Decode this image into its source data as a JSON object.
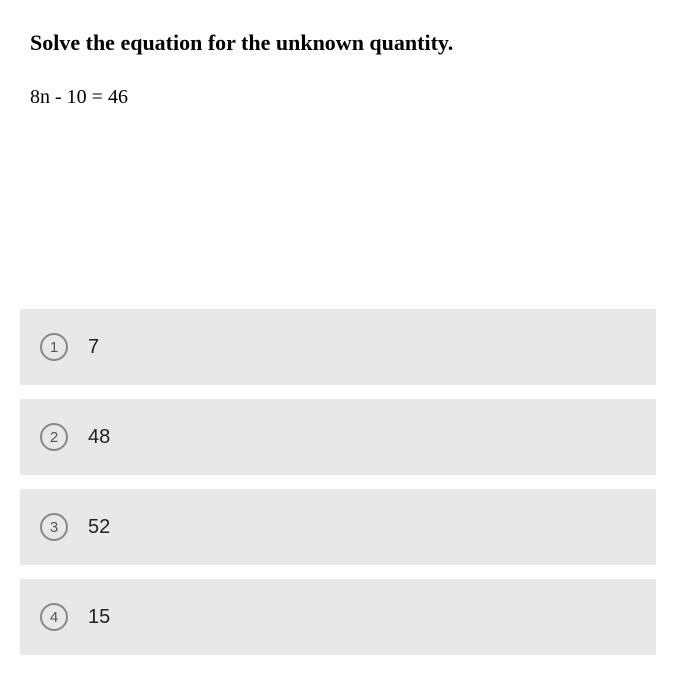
{
  "question": {
    "title": "Solve the equation for the unknown quantity.",
    "equation": "8n - 10 = 46"
  },
  "options": [
    {
      "number": "1",
      "text": "7"
    },
    {
      "number": "2",
      "text": "48"
    },
    {
      "number": "3",
      "text": "52"
    },
    {
      "number": "4",
      "text": "15"
    }
  ],
  "styles": {
    "background_color": "#ffffff",
    "option_background": "#e8e8e8",
    "title_fontsize": 22,
    "equation_fontsize": 20,
    "option_fontsize": 20,
    "circle_border_color": "#888888",
    "circle_text_color": "#555555",
    "option_text_color": "#222222"
  }
}
